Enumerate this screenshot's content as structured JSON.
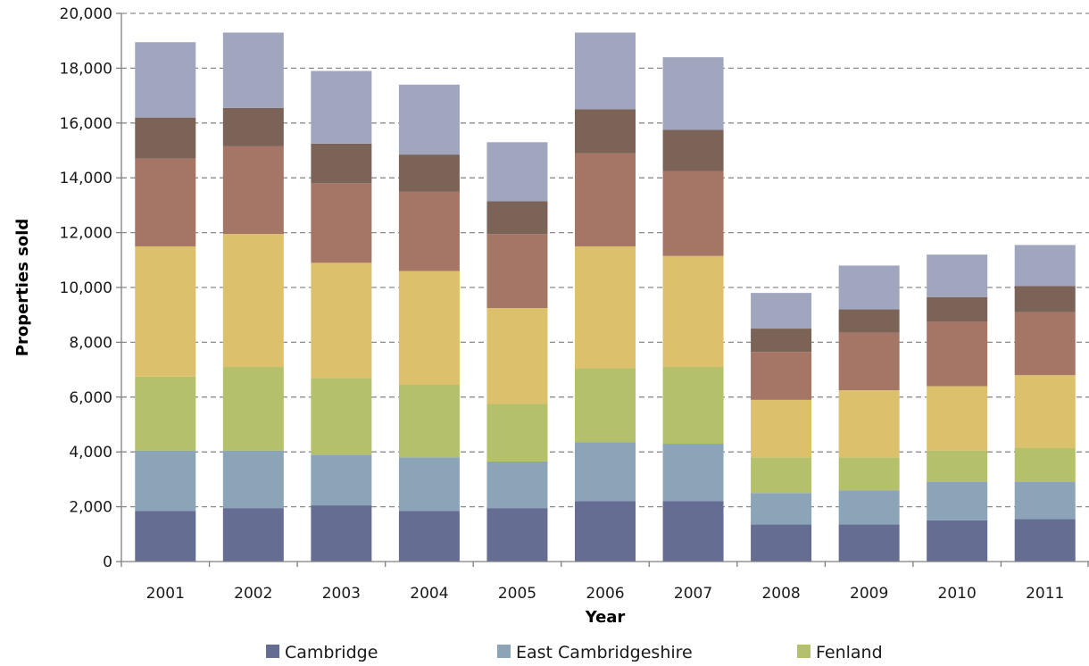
{
  "chart_data": {
    "type": "bar",
    "stacked": true,
    "categories": [
      "2001",
      "2002",
      "2003",
      "2004",
      "2005",
      "2006",
      "2007",
      "2008",
      "2009",
      "2010",
      "2011"
    ],
    "series": [
      {
        "name": "Cambridge",
        "color": "#656e92",
        "values": [
          1850,
          1950,
          2050,
          1850,
          1950,
          2200,
          2200,
          1350,
          1350,
          1500,
          1550
        ]
      },
      {
        "name": "East Cambridgeshire",
        "color": "#8ca4b8",
        "values": [
          2200,
          2100,
          1850,
          1950,
          1700,
          2150,
          2100,
          1150,
          1250,
          1400,
          1350
        ]
      },
      {
        "name": "Fenland",
        "color": "#b5c06a",
        "values": [
          2700,
          3050,
          2800,
          2650,
          2100,
          2700,
          2800,
          1300,
          1200,
          1150,
          1250
        ]
      },
      {
        "color": "#dcc06b",
        "values": [
          4750,
          4850,
          4200,
          4150,
          3500,
          4450,
          4050,
          2100,
          2450,
          2350,
          2650
        ]
      },
      {
        "color": "#a57565",
        "values": [
          3200,
          3200,
          2900,
          2900,
          2700,
          3400,
          3100,
          1750,
          2100,
          2350,
          2300
        ]
      },
      {
        "color": "#7b6358",
        "values": [
          1500,
          1400,
          1450,
          1350,
          1200,
          1600,
          1500,
          850,
          850,
          900,
          950
        ]
      },
      {
        "color": "#a1a6bf",
        "values": [
          2750,
          2750,
          2650,
          2550,
          2150,
          2800,
          2650,
          1300,
          1600,
          1550,
          1500
        ]
      }
    ],
    "xlabel": "Year",
    "ylabel": "Properties sold",
    "ylim": [
      0,
      20000
    ],
    "yticks": [
      0,
      2000,
      4000,
      6000,
      8000,
      10000,
      12000,
      14000,
      16000,
      18000,
      20000
    ],
    "ytick_labels": [
      "0",
      "2,000",
      "4,000",
      "6,000",
      "8,000",
      "10,000",
      "12,000",
      "14,000",
      "16,000",
      "18,000",
      "20,000"
    ],
    "grid": "horizontal-dashed",
    "legend_position": "bottom"
  }
}
